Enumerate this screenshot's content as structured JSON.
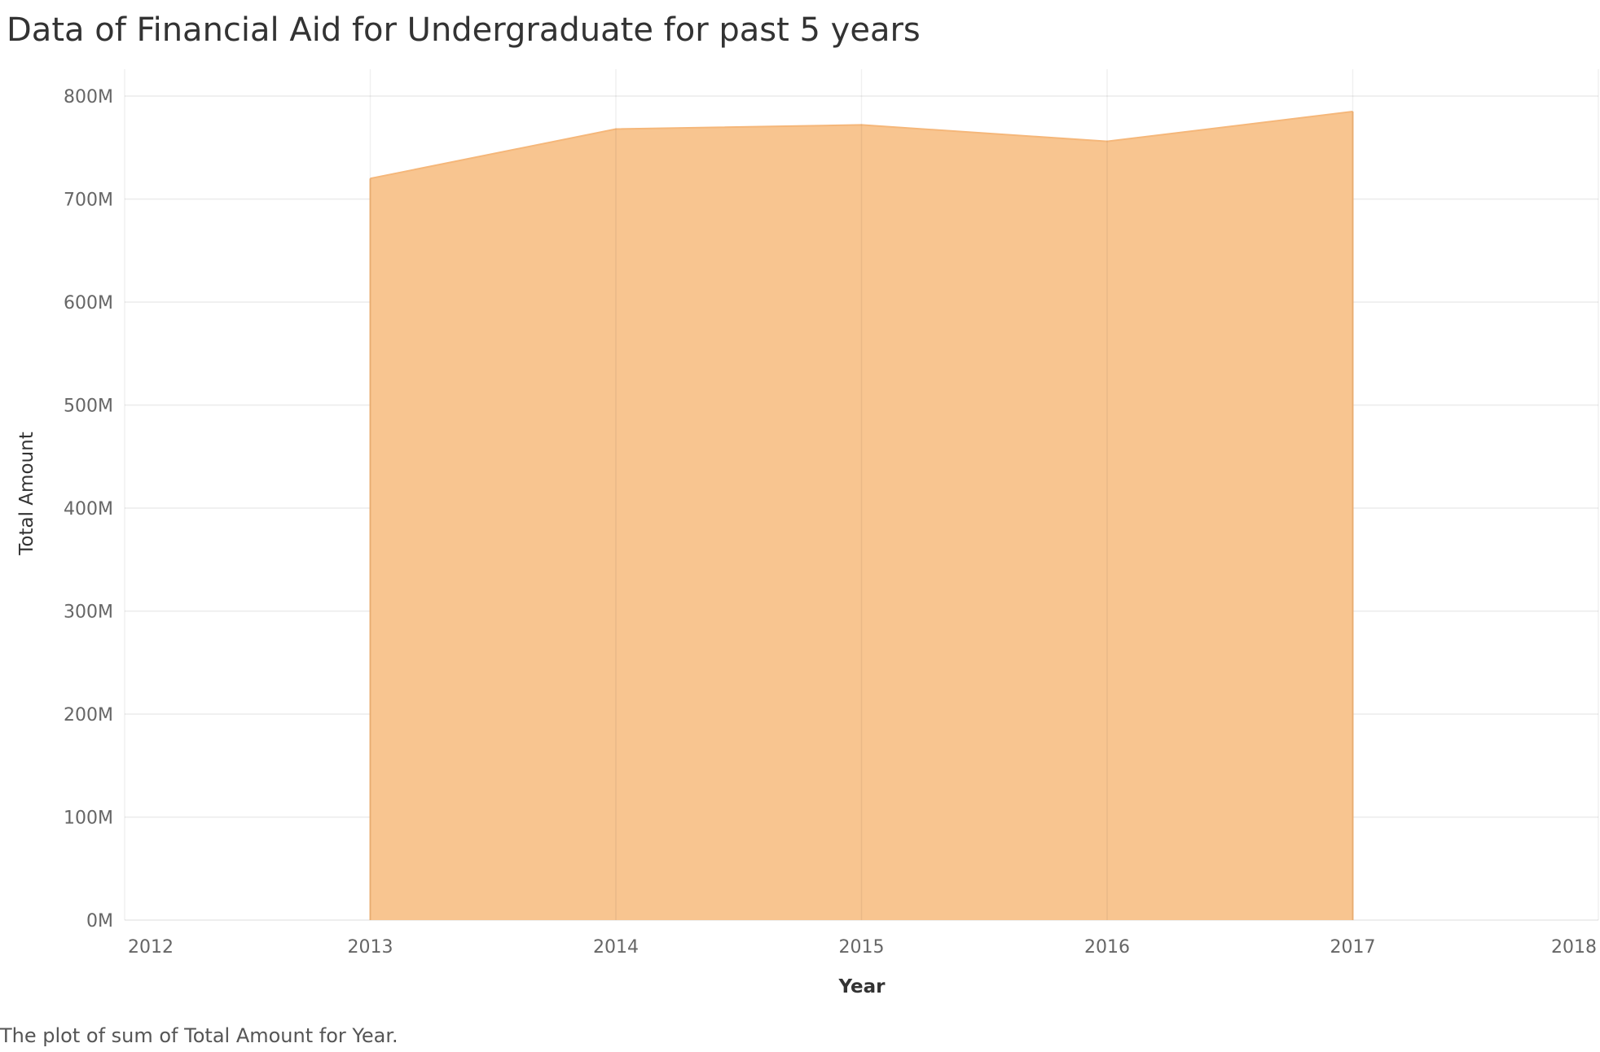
{
  "page": {
    "title": "Data of Financial Aid for Undergraduate for past 5 years",
    "caption": "The plot of sum of Total Amount for Year."
  },
  "chart_data": {
    "type": "area",
    "title": "Data of Financial Aid for Undergraduate for past 5 years",
    "xlabel": "Year",
    "ylabel": "Total Amount",
    "x": [
      2013,
      2014,
      2015,
      2016,
      2017
    ],
    "y": [
      720000000,
      768000000,
      772000000,
      756000000,
      785000000
    ],
    "xlim": [
      2012,
      2018
    ],
    "ylim": [
      0,
      800000000
    ],
    "x_ticks": [
      "2012",
      "2013",
      "2014",
      "2015",
      "2016",
      "2017",
      "2018"
    ],
    "y_ticks": [
      {
        "value": 0,
        "label": "0M"
      },
      {
        "value": 100000000,
        "label": "100M"
      },
      {
        "value": 200000000,
        "label": "200M"
      },
      {
        "value": 300000000,
        "label": "300M"
      },
      {
        "value": 400000000,
        "label": "400M"
      },
      {
        "value": 500000000,
        "label": "500M"
      },
      {
        "value": 600000000,
        "label": "600M"
      },
      {
        "value": 700000000,
        "label": "700M"
      },
      {
        "value": 800000000,
        "label": "800M"
      }
    ],
    "grid": true,
    "fill_color": "#f8c590",
    "stroke_color": "#f5b77a",
    "grid_color": "#ebebeb"
  }
}
